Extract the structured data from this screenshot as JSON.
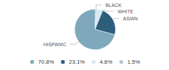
{
  "chart_data": {
    "type": "pie",
    "categories": [
      "BLACK",
      "WHITE",
      "ASIAN",
      "HISPANIC"
    ],
    "values": [
      1.5,
      4.6,
      23.1,
      70.8
    ],
    "value_labels": [
      "1.5%",
      "4.6%",
      "23.1%",
      "70.8%"
    ],
    "colors": [
      "#b0c8d8",
      "#d6e8f0",
      "#2d5f7a",
      "#7fa8bc"
    ],
    "legend": "bottom",
    "legend_labels": [
      "70.8%",
      "23.1%",
      "4.6%",
      "1.5%"
    ]
  }
}
